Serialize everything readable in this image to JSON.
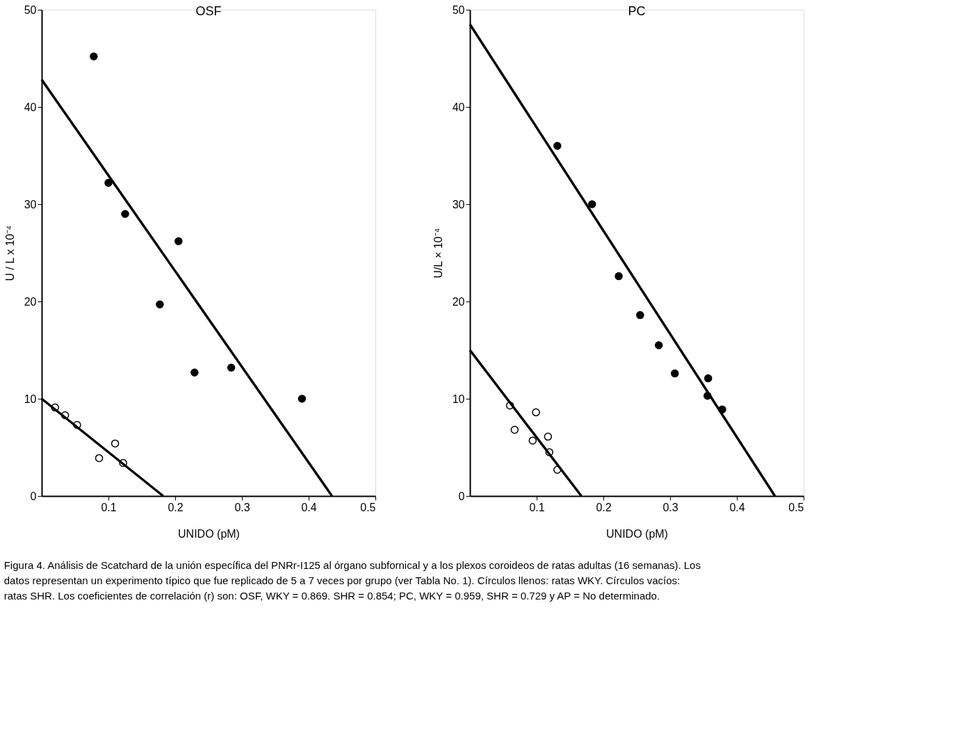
{
  "chart_data": [
    {
      "type": "scatter",
      "title": "OSF",
      "xlabel": "UNIDO (pM)",
      "ylabel": "U / L x 10⁻⁴",
      "xlim": [
        0,
        0.5
      ],
      "xticks": [
        0.1,
        0.2,
        0.3,
        0.4,
        0.5
      ],
      "ylim": [
        0,
        50
      ],
      "yticks": [
        0,
        10,
        20,
        30,
        40,
        50
      ],
      "grid": false,
      "series": [
        {
          "color": "#000000",
          "marker": "circle",
          "x": [
            0.078,
            0.1,
            0.125,
            0.205,
            0.177,
            0.229,
            0.284,
            0.39
          ],
          "values": [
            45.2,
            32.2,
            29.0,
            26.2,
            19.7,
            12.7,
            13.2,
            10.0
          ]
        },
        {
          "color": "#ffffff",
          "marker": "circle",
          "x": [
            0.02,
            0.035,
            0.053,
            0.086,
            0.11,
            0.122
          ],
          "values": [
            9.1,
            8.3,
            7.3,
            3.9,
            5.4,
            3.4
          ]
        },
        {
          "type": "line",
          "color": "#000000",
          "marker": "none",
          "line_style": "solid",
          "x": [
            0,
            0.435
          ],
          "values": [
            42.8,
            0
          ]
        },
        {
          "type": "line",
          "color": "#000000",
          "marker": "none",
          "line_style": "solid",
          "x": [
            0,
            0.182
          ],
          "values": [
            10.0,
            0
          ]
        }
      ]
    },
    {
      "type": "scatter",
      "title": "PC",
      "xlabel": "UNIDO (pM)",
      "ylabel": "U/L × 10⁻⁴",
      "xlim": [
        0,
        0.5
      ],
      "xticks": [
        0.1,
        0.2,
        0.3,
        0.4,
        0.5
      ],
      "ylim": [
        0,
        50
      ],
      "yticks": [
        0,
        10,
        20,
        30,
        40,
        50
      ],
      "grid": false,
      "annotations": [
        "Figura 4. Análisis de Scatchard de la unión específica del PNRr-I125 al órgano subfornical y a los plexos coroideos de ratas adultas (16 semanas). Los datos representan un experimento típico que fue replicado de 5 a 7 veces por grupo (ver Tabla No. 1). Círculos llenos: ratas WKY. Círculos vacíos: ratas SHR. Los coeficientes de correlación (r) son: OSF, WKY = 0.869. SHR = 0.854; PC, WKY = 0.959, SHR = 0.729 y AP = No determinado."
      ],
      "series": [
        {
          "color": "#000000",
          "marker": "circle",
          "x": [
            0.131,
            0.183,
            0.223,
            0.255,
            0.283,
            0.307,
            0.357,
            0.356,
            0.378
          ],
          "values": [
            36.0,
            30.0,
            22.6,
            18.6,
            15.5,
            12.6,
            12.1,
            10.3,
            8.9
          ]
        },
        {
          "color": "#ffffff",
          "marker": "circle",
          "x": [
            0.06,
            0.067,
            0.099,
            0.094,
            0.117,
            0.119,
            0.131
          ],
          "values": [
            9.3,
            6.8,
            8.6,
            5.7,
            6.1,
            4.5,
            2.7
          ]
        },
        {
          "type": "line",
          "color": "#000000",
          "marker": "none",
          "line_style": "solid",
          "x": [
            0,
            0.457
          ],
          "values": [
            48.5,
            0
          ]
        },
        {
          "type": "line",
          "color": "#000000",
          "marker": "none",
          "line_style": "solid",
          "x": [
            0,
            0.167
          ],
          "values": [
            15.0,
            0
          ]
        }
      ]
    }
  ]
}
